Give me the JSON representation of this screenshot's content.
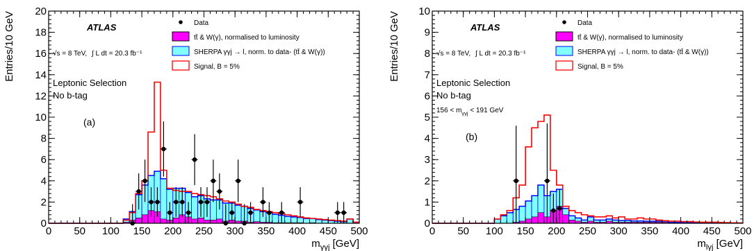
{
  "chart_data": [
    {
      "type": "bar",
      "panel_label": "(a)",
      "atlas_label": "ATLAS",
      "energy": "√s = 8 TeV,",
      "lumi": "∫ L dt = 20.3 fb⁻¹",
      "selection": "Leptonic Selection",
      "btag": "No b-tag",
      "xlabel": "m_γγj [GeV]",
      "ylabel": "Entries/10 GeV",
      "xlim": [
        0,
        500
      ],
      "ylim": [
        0,
        20
      ],
      "x_ticks": [
        0,
        50,
        100,
        150,
        200,
        250,
        300,
        350,
        400,
        450,
        500
      ],
      "y_ticks": [
        0,
        2,
        4,
        6,
        8,
        10,
        12,
        14,
        16,
        18,
        20
      ],
      "bin_edges": [
        0,
        10,
        20,
        30,
        40,
        50,
        60,
        70,
        80,
        90,
        100,
        110,
        120,
        130,
        140,
        150,
        160,
        170,
        180,
        190,
        200,
        210,
        220,
        230,
        240,
        250,
        260,
        270,
        280,
        290,
        300,
        310,
        320,
        330,
        340,
        350,
        360,
        370,
        380,
        390,
        400,
        410,
        420,
        430,
        440,
        450,
        460,
        470,
        480,
        490,
        500
      ],
      "legend": [
        {
          "label": "Data",
          "kind": "marker"
        },
        {
          "label": "tt̄ & W(γ), normalised to luminosity",
          "kind": "fill",
          "color": "#ff00ff"
        },
        {
          "label": "SHERPA γγj → l, norm. to data- (tt̄ & W(γ))",
          "kind": "fill",
          "color": "#7fffff"
        },
        {
          "label": "Signal, B = 5%",
          "kind": "line",
          "color": "#ff0000"
        }
      ],
      "series": [
        {
          "name": "tt̄ & W(γ), normalised to luminosity",
          "values": [
            0,
            0,
            0,
            0,
            0,
            0,
            0,
            0,
            0,
            0,
            0,
            0,
            0.1,
            0.3,
            0.5,
            0.8,
            1.2,
            1.1,
            0.4,
            0.3,
            0.5,
            0.8,
            0.6,
            0.4,
            0.5,
            0.3,
            0.3,
            0.4,
            0.2,
            0.3,
            0.2,
            0.2,
            0.1,
            0.15,
            0.1,
            0.1,
            0.05,
            0.05,
            0.05,
            0.05,
            0.05,
            0,
            0.05,
            0,
            0,
            0,
            0,
            0,
            0,
            0
          ]
        },
        {
          "name": "SHERPA γγj → l, norm. to data- (tt̄ & W(γ))",
          "values": [
            0,
            0,
            0,
            0,
            0,
            0,
            0,
            0,
            0,
            0,
            0,
            0,
            0.3,
            0.8,
            2.2,
            2.8,
            3.3,
            3.8,
            3.8,
            2.9,
            2.8,
            2.5,
            2.3,
            2.1,
            2.1,
            2.0,
            1.9,
            1.8,
            1.7,
            1.6,
            1.5,
            1.4,
            1.3,
            1.1,
            1.0,
            0.9,
            0.8,
            0.7,
            0.6,
            0.55,
            0.5,
            0.45,
            0.4,
            0.35,
            0.3,
            0.25,
            0.2,
            0.15,
            0.4,
            0.1
          ]
        },
        {
          "name": "Signal, B = 5%",
          "values": [
            0,
            0,
            0,
            0,
            0,
            0,
            0,
            0,
            0,
            0,
            0,
            0,
            0.3,
            1.0,
            2.8,
            4.0,
            8.6,
            13.3,
            5.0,
            3.3,
            3.1,
            3.0,
            3.0,
            2.8,
            2.7,
            2.6,
            2.5,
            2.3,
            2.1,
            2.0,
            1.8,
            1.6,
            1.5,
            1.3,
            1.2,
            1.1,
            1.0,
            0.9,
            0.8,
            0.7,
            0.6,
            0.5,
            0.45,
            0.4,
            0.35,
            0.3,
            0.25,
            0.2,
            0.4,
            0.1
          ]
        }
      ],
      "data_points": [
        {
          "x": 135,
          "y": 0,
          "err": 1.8
        },
        {
          "x": 145,
          "y": 3,
          "err": 1.7
        },
        {
          "x": 155,
          "y": 4,
          "err": 2.0
        },
        {
          "x": 165,
          "y": 2,
          "err": 1.4
        },
        {
          "x": 175,
          "y": 2,
          "err": 1.4
        },
        {
          "x": 185,
          "y": 7,
          "err": 2.6
        },
        {
          "x": 195,
          "y": 1,
          "err": 1.0
        },
        {
          "x": 205,
          "y": 2,
          "err": 1.4
        },
        {
          "x": 215,
          "y": 2,
          "err": 1.4
        },
        {
          "x": 225,
          "y": 1,
          "err": 1.0
        },
        {
          "x": 235,
          "y": 6,
          "err": 2.4
        },
        {
          "x": 245,
          "y": 2,
          "err": 1.4
        },
        {
          "x": 255,
          "y": 2,
          "err": 1.4
        },
        {
          "x": 265,
          "y": 4,
          "err": 2.0
        },
        {
          "x": 275,
          "y": 3,
          "err": 1.7
        },
        {
          "x": 285,
          "y": 0,
          "err": 1.8
        },
        {
          "x": 295,
          "y": 1,
          "err": 1.0
        },
        {
          "x": 305,
          "y": 4,
          "err": 2.0
        },
        {
          "x": 315,
          "y": 0,
          "err": 1.8
        },
        {
          "x": 325,
          "y": 1,
          "err": 1.0
        },
        {
          "x": 345,
          "y": 2,
          "err": 1.4
        },
        {
          "x": 355,
          "y": 1,
          "err": 1.0
        },
        {
          "x": 375,
          "y": 1,
          "err": 1.0
        },
        {
          "x": 405,
          "y": 2,
          "err": 1.4
        },
        {
          "x": 465,
          "y": 1,
          "err": 1.0
        },
        {
          "x": 475,
          "y": 1,
          "err": 1.0
        }
      ]
    },
    {
      "type": "bar",
      "panel_label": "(b)",
      "atlas_label": "ATLAS",
      "energy": "√s = 8 TeV,",
      "lumi": "∫ L dt = 20.3 fb⁻¹",
      "selection": "Leptonic Selection",
      "btag": "No b-tag",
      "mass_window": "156 < m_γγj < 191 GeV",
      "xlabel": "m_lγj [GeV]",
      "ylabel": "Entries/10 GeV",
      "xlim": [
        0,
        500
      ],
      "ylim": [
        0,
        10
      ],
      "x_ticks": [
        0,
        50,
        100,
        150,
        200,
        250,
        300,
        350,
        400,
        450,
        500
      ],
      "y_ticks": [
        0,
        1,
        2,
        3,
        4,
        5,
        6,
        7,
        8,
        9,
        10
      ],
      "bin_edges": [
        0,
        10,
        20,
        30,
        40,
        50,
        60,
        70,
        80,
        90,
        100,
        110,
        120,
        130,
        140,
        150,
        160,
        170,
        180,
        190,
        200,
        210,
        220,
        230,
        240,
        250,
        260,
        270,
        280,
        290,
        300,
        310,
        320,
        330,
        340,
        350,
        360,
        370,
        380,
        390,
        400,
        410,
        420,
        430,
        440,
        450,
        460,
        470,
        480,
        490,
        500
      ],
      "legend": [
        {
          "label": "Data",
          "kind": "marker"
        },
        {
          "label": "tt̄ & W(γ), normalised to luminosity",
          "kind": "fill",
          "color": "#ff00ff"
        },
        {
          "label": "SHERPA γγj → l, norm. to data- (tt̄ & W(γ))",
          "kind": "fill",
          "color": "#7fffff"
        },
        {
          "label": "Signal, B = 5%",
          "kind": "line",
          "color": "#ff0000"
        }
      ],
      "series": [
        {
          "name": "tt̄ & W(γ), normalised to luminosity",
          "values": [
            0,
            0,
            0,
            0,
            0,
            0,
            0,
            0,
            0,
            0,
            0,
            0,
            0,
            0.05,
            0.1,
            0.2,
            0.3,
            0.5,
            0.3,
            0.6,
            0.8,
            0.4,
            0.15,
            0.1,
            0.05,
            0.1,
            0.05,
            0.05,
            0.1,
            0.05,
            0.05,
            0.05,
            0.05,
            0.05,
            0.05,
            0.05,
            0.05,
            0.05,
            0,
            0,
            0,
            0,
            0,
            0,
            0,
            0,
            0,
            0,
            0,
            0
          ]
        },
        {
          "name": "SHERPA γγj → l, norm. to data- (tt̄ & W(γ))",
          "values": [
            0,
            0,
            0,
            0,
            0,
            0,
            0,
            0,
            0,
            0,
            0.2,
            0.35,
            0.5,
            0.6,
            0.7,
            0.85,
            1.0,
            1.3,
            1.0,
            0.9,
            0.8,
            0.3,
            0.2,
            0.15,
            0.1,
            0.2,
            0.1,
            0.1,
            0.1,
            0.1,
            0.08,
            0.08,
            0.06,
            0.06,
            0.05,
            0.05,
            0.05,
            0.05,
            0.04,
            0.04,
            0.03,
            0.03,
            0.02,
            0.02,
            0.02,
            0.02,
            0.01,
            0.01,
            0.01,
            0.01
          ]
        },
        {
          "name": "Signal, B = 5%",
          "values": [
            0,
            0,
            0,
            0,
            0,
            0,
            0,
            0,
            0,
            0,
            0.2,
            0.4,
            0.6,
            1.2,
            1.8,
            3.6,
            4.5,
            4.8,
            5.1,
            2.5,
            1.8,
            0.8,
            0.6,
            0.5,
            0.4,
            0.35,
            0.3,
            0.3,
            0.35,
            0.25,
            0.3,
            0.2,
            0.2,
            0.25,
            0.2,
            0.2,
            0.15,
            0.12,
            0.1,
            0.1,
            0.08,
            0.08,
            0.06,
            0.05,
            0.05,
            0.05,
            0.04,
            0.03,
            0.02,
            0.02
          ]
        }
      ],
      "data_points": [
        {
          "x": 135,
          "y": 2,
          "err": 2.6
        },
        {
          "x": 185,
          "y": 2,
          "err": 2.7
        },
        {
          "x": 195,
          "y": 0.6,
          "err": 0.8
        },
        {
          "x": 205,
          "y": 0.7,
          "err": 0.9
        }
      ]
    }
  ]
}
